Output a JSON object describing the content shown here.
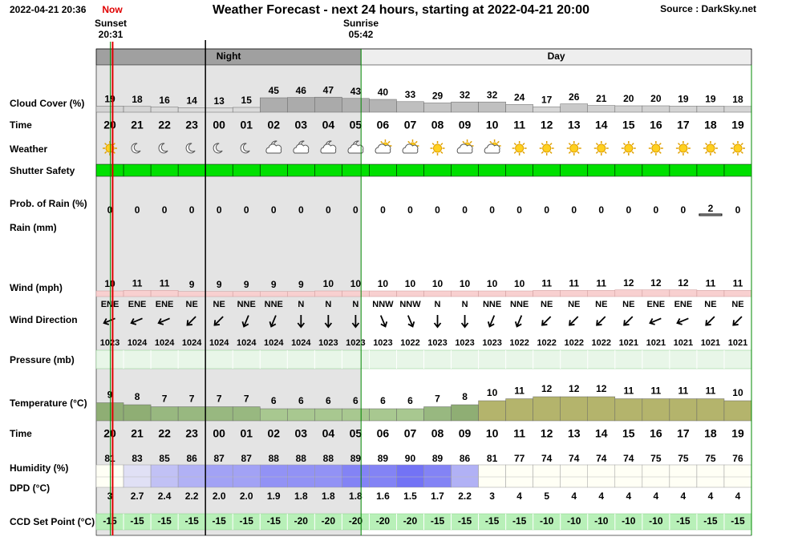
{
  "header": {
    "timestamp": "2022-04-21 20:36",
    "now": "Now",
    "title": "Weather Forecast - next 24 hours, starting at 2022-04-21 20:00",
    "source": "Source : DarkSky.net"
  },
  "sun": {
    "sunset": "Sunset",
    "sunset_time": "20:31",
    "sunrise": "Sunrise",
    "sunrise_time": "05:42"
  },
  "periods": {
    "night": "Night",
    "day": "Day"
  },
  "labels": {
    "cloud_cover": "Cloud Cover (%)",
    "time": "Time",
    "weather": "Weather",
    "shutter_safety": "Shutter Safety",
    "rain_probability": "Prob. of Rain (%)",
    "rain": "Rain (mm)",
    "wind_speed": "Wind (mph)",
    "wind_direction": "Wind Direction",
    "pressure": "Pressure (mb)",
    "temperature": "Temperature (°C)",
    "time_2": "Time",
    "humidity": "Humidity (%)",
    "dpd": "DPD (°C)",
    "ccd_set_point": "CCD Set Point (°C)"
  },
  "hours": [
    "20",
    "21",
    "22",
    "23",
    "00",
    "01",
    "02",
    "03",
    "04",
    "05",
    "06",
    "07",
    "08",
    "09",
    "10",
    "11",
    "12",
    "13",
    "14",
    "15",
    "16",
    "17",
    "18",
    "19"
  ],
  "cloud_cover": [
    19,
    18,
    16,
    14,
    13,
    15,
    45,
    46,
    47,
    43,
    40,
    33,
    29,
    32,
    32,
    24,
    17,
    26,
    21,
    20,
    20,
    19,
    19,
    18
  ],
  "weather": [
    "clear-day",
    "clear-night",
    "clear-night",
    "clear-night",
    "clear-night",
    "clear-night",
    "partly-cloudy-night",
    "partly-cloudy-night",
    "partly-cloudy-night",
    "partly-cloudy-night",
    "partly-cloudy-day",
    "partly-cloudy-day",
    "clear-day",
    "partly-cloudy-day",
    "partly-cloudy-day",
    "clear-day",
    "clear-day",
    "clear-day",
    "clear-day",
    "clear-day",
    "clear-day",
    "clear-day",
    "clear-day",
    "clear-day"
  ],
  "rain_probability": [
    0,
    0,
    0,
    0,
    0,
    0,
    0,
    0,
    0,
    0,
    0,
    0,
    0,
    0,
    0,
    0,
    0,
    0,
    0,
    0,
    0,
    0,
    2,
    0
  ],
  "wind_speed": [
    10,
    11,
    11,
    9,
    9,
    9,
    9,
    9,
    10,
    10,
    10,
    10,
    10,
    10,
    10,
    10,
    11,
    11,
    11,
    12,
    12,
    12,
    11,
    11
  ],
  "wind_direction": [
    "ENE",
    "ENE",
    "ENE",
    "NE",
    "NE",
    "NNE",
    "NNE",
    "N",
    "N",
    "N",
    "NNW",
    "NNW",
    "N",
    "N",
    "NNE",
    "NNE",
    "NE",
    "NE",
    "NE",
    "NE",
    "ENE",
    "ENE",
    "NE",
    "NE"
  ],
  "pressure": [
    1023,
    1024,
    1024,
    1024,
    1024,
    1024,
    1024,
    1024,
    1023,
    1023,
    1023,
    1022,
    1023,
    1023,
    1023,
    1022,
    1022,
    1022,
    1022,
    1021,
    1021,
    1021,
    1021,
    1021
  ],
  "temperature": [
    9,
    8,
    7,
    7,
    7,
    7,
    6,
    6,
    6,
    6,
    6,
    6,
    7,
    8,
    10,
    11,
    12,
    12,
    12,
    11,
    11,
    11,
    11,
    10
  ],
  "humidity": [
    81,
    83,
    85,
    86,
    87,
    87,
    88,
    88,
    88,
    89,
    89,
    90,
    89,
    86,
    81,
    77,
    74,
    74,
    74,
    74,
    75,
    75,
    75,
    76
  ],
  "dpd": {
    "values": [
      3,
      2.7,
      2.4,
      2.2,
      2,
      2,
      1.9,
      1.8,
      1.8,
      1.8,
      1.6,
      1.5,
      1.7,
      2.2,
      3,
      4,
      5,
      4,
      4,
      4,
      4,
      4,
      4,
      4
    ],
    "value_labels": [
      "3",
      "2.7",
      "2.4",
      "2.2",
      "2.0",
      "2.0",
      "1.9",
      "1.8",
      "1.8",
      "1.8",
      "1.6",
      "1.5",
      "1.7",
      "2.2",
      "3",
      "4",
      "5",
      "4",
      "4",
      "4",
      "4",
      "4",
      "4",
      "4"
    ]
  },
  "ccd_set_point": [
    -15,
    -15,
    -15,
    -15,
    -15,
    -15,
    -15,
    -20,
    -20,
    -20,
    -20,
    -20,
    -15,
    -15,
    -15,
    -15,
    -10,
    -10,
    -10,
    -10,
    -10,
    -15,
    -15,
    -15
  ]
}
